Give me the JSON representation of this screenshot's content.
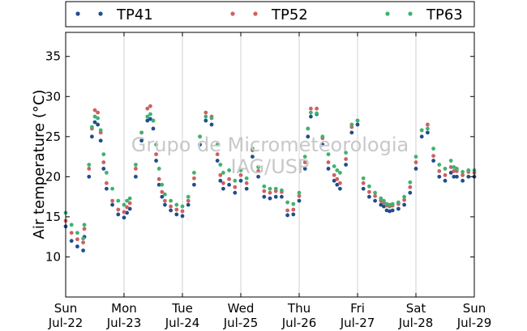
{
  "watermark": {
    "line1": "Grupo de Micrometeorologia",
    "line2": "IAG/USP"
  },
  "chart_data": {
    "type": "scatter",
    "title": "",
    "ylabel": "Air temperature (°C)",
    "xlabel": "",
    "ylim": [
      5,
      38
    ],
    "yticks": [
      10,
      15,
      20,
      25,
      30,
      35
    ],
    "xlim_days": [
      0,
      7
    ],
    "xticks": [
      {
        "day": 0,
        "line1": "Sun",
        "line2": "Jul-22"
      },
      {
        "day": 1,
        "line1": "Mon",
        "line2": "Jul-23"
      },
      {
        "day": 2,
        "line1": "Tue",
        "line2": "Jul-24"
      },
      {
        "day": 3,
        "line1": "Wed",
        "line2": "Jul-25"
      },
      {
        "day": 4,
        "line1": "Thu",
        "line2": "Jul-26"
      },
      {
        "day": 5,
        "line1": "Fri",
        "line2": "Jul-27"
      },
      {
        "day": 6,
        "line1": "Sat",
        "line2": "Jul-28"
      },
      {
        "day": 7,
        "line1": "Sun",
        "line2": "Jul-29"
      }
    ],
    "grid": "vertical",
    "legend_position": "top",
    "x": [
      0.0,
      0.1,
      0.2,
      0.3,
      0.32,
      0.4,
      0.45,
      0.5,
      0.55,
      0.6,
      0.65,
      0.7,
      0.8,
      0.9,
      1.0,
      1.05,
      1.1,
      1.2,
      1.3,
      1.4,
      1.45,
      1.5,
      1.55,
      1.6,
      1.65,
      1.7,
      1.8,
      1.9,
      2.0,
      2.1,
      2.2,
      2.3,
      2.4,
      2.5,
      2.6,
      2.65,
      2.7,
      2.8,
      2.9,
      3.0,
      3.1,
      3.2,
      3.3,
      3.4,
      3.5,
      3.6,
      3.7,
      3.8,
      3.9,
      4.0,
      4.1,
      4.15,
      4.2,
      4.3,
      4.4,
      4.5,
      4.6,
      4.65,
      4.7,
      4.8,
      4.9,
      5.0,
      5.1,
      5.2,
      5.3,
      5.4,
      5.45,
      5.5,
      5.55,
      5.6,
      5.7,
      5.8,
      5.9,
      6.0,
      6.1,
      6.2,
      6.3,
      6.4,
      6.5,
      6.6,
      6.65,
      6.7,
      6.8,
      6.9,
      7.0
    ],
    "series": [
      {
        "name": "TP41",
        "color": "#1f4e8c",
        "values": [
          13.8,
          12.0,
          11.3,
          10.8,
          12.5,
          20.0,
          25.0,
          26.8,
          26.5,
          24.5,
          21.0,
          18.5,
          16.5,
          15.3,
          14.9,
          15.5,
          16.0,
          20.0,
          24.5,
          27.0,
          27.2,
          26.0,
          22.0,
          19.0,
          17.5,
          16.5,
          15.8,
          15.3,
          15.1,
          16.5,
          19.0,
          24.0,
          27.0,
          26.5,
          22.0,
          19.5,
          18.5,
          19.0,
          18.0,
          19.5,
          18.5,
          22.5,
          20.0,
          17.5,
          17.3,
          17.5,
          17.5,
          15.2,
          15.3,
          17.0,
          21.0,
          25.0,
          27.5,
          27.8,
          24.0,
          21.0,
          19.5,
          19.0,
          18.5,
          21.5,
          25.5,
          26.5,
          18.5,
          17.5,
          17.0,
          16.5,
          16.3,
          15.8,
          15.7,
          15.8,
          16.0,
          16.5,
          18.0,
          21.0,
          25.0,
          25.5,
          22.0,
          20.0,
          19.5,
          20.5,
          20.0,
          20.0,
          19.5,
          20.0,
          20.0
        ]
      },
      {
        "name": "TP52",
        "color": "#d06060",
        "values": [
          14.5,
          13.0,
          12.2,
          11.8,
          13.5,
          21.0,
          26.0,
          28.3,
          28.0,
          25.5,
          21.8,
          19.2,
          17.0,
          15.9,
          15.6,
          16.2,
          16.7,
          21.0,
          25.5,
          28.5,
          28.8,
          27.0,
          22.8,
          19.7,
          18.1,
          17.0,
          16.3,
          15.9,
          15.7,
          17.0,
          19.8,
          25.0,
          28.0,
          27.5,
          22.8,
          20.2,
          19.2,
          19.7,
          18.7,
          20.2,
          19.2,
          23.3,
          20.7,
          18.2,
          18.0,
          18.2,
          18.1,
          15.8,
          15.9,
          17.6,
          21.8,
          26.0,
          28.5,
          28.5,
          24.8,
          21.8,
          20.2,
          19.7,
          19.2,
          22.2,
          26.2,
          27.0,
          19.2,
          18.1,
          17.6,
          17.0,
          16.8,
          16.4,
          16.3,
          16.4,
          16.6,
          17.1,
          18.7,
          21.8,
          25.8,
          26.5,
          22.6,
          20.7,
          20.2,
          21.2,
          20.7,
          20.7,
          20.2,
          20.6,
          20.5
        ]
      },
      {
        "name": "TP63",
        "color": "#3cb371",
        "values": [
          15.5,
          14.0,
          13.0,
          12.3,
          14.0,
          21.5,
          26.2,
          27.5,
          27.3,
          25.8,
          22.8,
          20.5,
          18.5,
          17.0,
          16.5,
          17.0,
          17.3,
          21.5,
          25.5,
          27.5,
          27.8,
          27.0,
          24.0,
          21.0,
          19.0,
          17.8,
          17.0,
          16.5,
          16.3,
          17.5,
          20.5,
          25.0,
          27.5,
          27.3,
          24.0,
          21.5,
          20.5,
          20.8,
          19.5,
          20.8,
          19.8,
          23.5,
          21.2,
          18.8,
          18.5,
          18.5,
          18.3,
          16.8,
          16.6,
          18.0,
          22.5,
          26.0,
          28.0,
          27.9,
          25.0,
          22.8,
          21.3,
          20.8,
          20.5,
          23.0,
          26.5,
          27.0,
          19.8,
          18.8,
          18.0,
          17.3,
          17.0,
          16.6,
          16.5,
          16.6,
          16.8,
          17.5,
          19.3,
          22.5,
          25.8,
          26.0,
          23.5,
          21.5,
          21.0,
          22.0,
          21.2,
          21.0,
          20.6,
          20.8,
          20.8
        ]
      }
    ]
  }
}
